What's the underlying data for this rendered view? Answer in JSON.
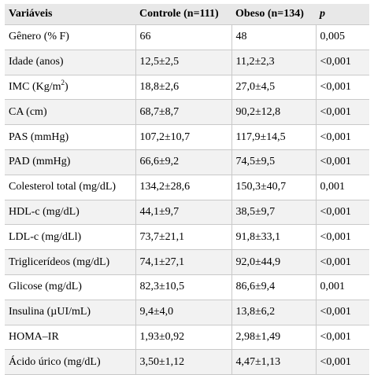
{
  "table": {
    "headers": {
      "variables": "Variáveis",
      "control": "Controle (n=111)",
      "obese": "Obeso (n=134)",
      "p": "p"
    },
    "rows": [
      {
        "label": "Gênero (% F)",
        "control": "66",
        "obese": "48",
        "p": "0,005"
      },
      {
        "label": "Idade (anos)",
        "control": "12,5±2,5",
        "obese": "11,2±2,3",
        "p": "<0,001"
      },
      {
        "label": "IMC (Kg/m",
        "label_sup": "2",
        "label_suffix": ")",
        "control": "18,8±2,6",
        "obese": "27,0±4,5",
        "p": "<0,001"
      },
      {
        "label": "CA (cm)",
        "control": "68,7±8,7",
        "obese": "90,2±12,8",
        "p": "<0,001"
      },
      {
        "label": "PAS (mmHg)",
        "control": "107,2±10,7",
        "obese": "117,9±14,5",
        "p": "<0,001"
      },
      {
        "label": "PAD (mmHg)",
        "control": "66,6±9,2",
        "obese": "74,5±9,5",
        "p": "<0,001"
      },
      {
        "label": "Colesterol total (mg/dL)",
        "control": "134,2±28,6",
        "obese": "150,3±40,7",
        "p": "0,001"
      },
      {
        "label": "HDL-c (mg/dL)",
        "control": "44,1±9,7",
        "obese": "38,5±9,7",
        "p": "<0,001"
      },
      {
        "label": "LDL-c (mg/dLl)",
        "control": "73,7±21,1",
        "obese": "91,8±33,1",
        "p": "<0,001"
      },
      {
        "label": "Triglicerídeos (mg/dL)",
        "control": "74,1±27,1",
        "obese": "92,0±44,9",
        "p": "<0,001"
      },
      {
        "label": "Glicose (mg/dL)",
        "control": "82,3±10,5",
        "obese": "86,6±9,4",
        "p": "0,001"
      },
      {
        "label": "Insulina (µUI/mL)",
        "control": "9,4±4,0",
        "obese": "13,8±6,2",
        "p": "<0,001"
      },
      {
        "label": "HOMA–IR",
        "control": "1,93±0,92",
        "obese": "2,98±1,49",
        "p": "<0,001"
      },
      {
        "label": "Ácido úrico (mg/dL)",
        "control": "3,50±1,12",
        "obese": "4,47±1,13",
        "p": "<0,001"
      }
    ]
  },
  "colors": {
    "header_bg": "#e8e8e8",
    "row_alt_bg": "#f2f2f2",
    "grid": "#c9c9c9",
    "text": "#000000"
  }
}
